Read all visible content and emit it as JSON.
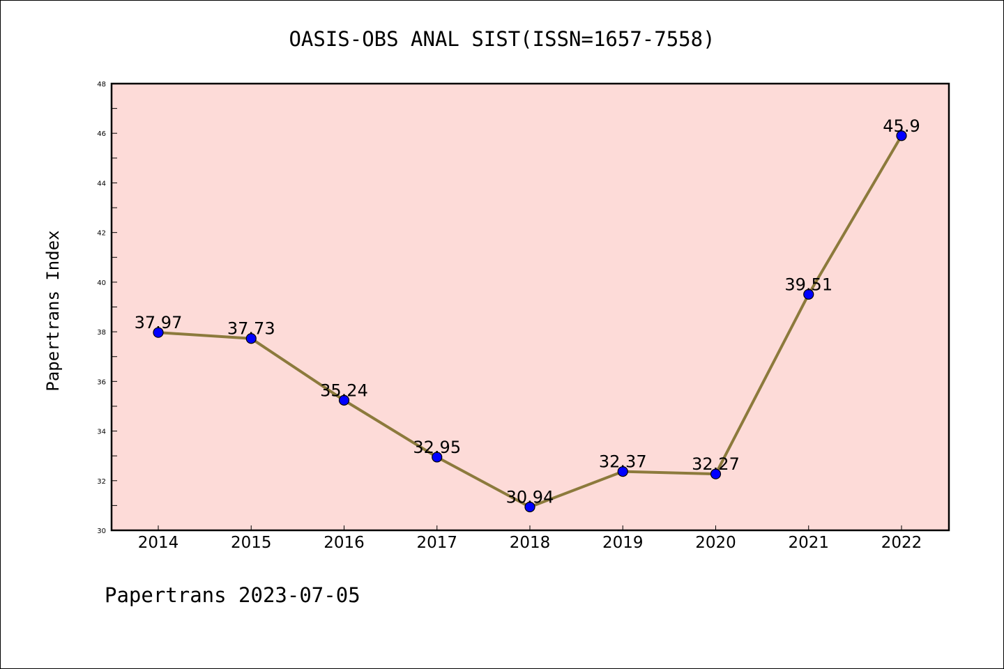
{
  "chart_data": {
    "type": "line",
    "title": "OASIS-OBS ANAL SIST(ISSN=1657-7558)",
    "xlabel": "",
    "ylabel": "Papertrans Index",
    "footer": "Papertrans 2023-07-05",
    "categories": [
      "2014",
      "2015",
      "2016",
      "2017",
      "2018",
      "2019",
      "2020",
      "2021",
      "2022"
    ],
    "series": [
      {
        "values": [
          37.97,
          37.73,
          35.24,
          32.95,
          30.94,
          32.37,
          32.27,
          39.51,
          45.9
        ],
        "labels": [
          "37.97",
          "37.73",
          "35.24",
          "32.95",
          "30.94",
          "32.37",
          "32.27",
          "39.51",
          "45.9"
        ]
      }
    ],
    "ylim": [
      30,
      48
    ],
    "yticks": [
      30,
      32,
      34,
      36,
      38,
      40,
      42,
      44,
      46,
      48
    ],
    "yminor_step": 1,
    "grid": false,
    "legend": "none",
    "colors": {
      "plot_background": "#fddbd8",
      "line": "#8c7a3c",
      "marker": "#0000ff",
      "axes": "#000000"
    }
  }
}
